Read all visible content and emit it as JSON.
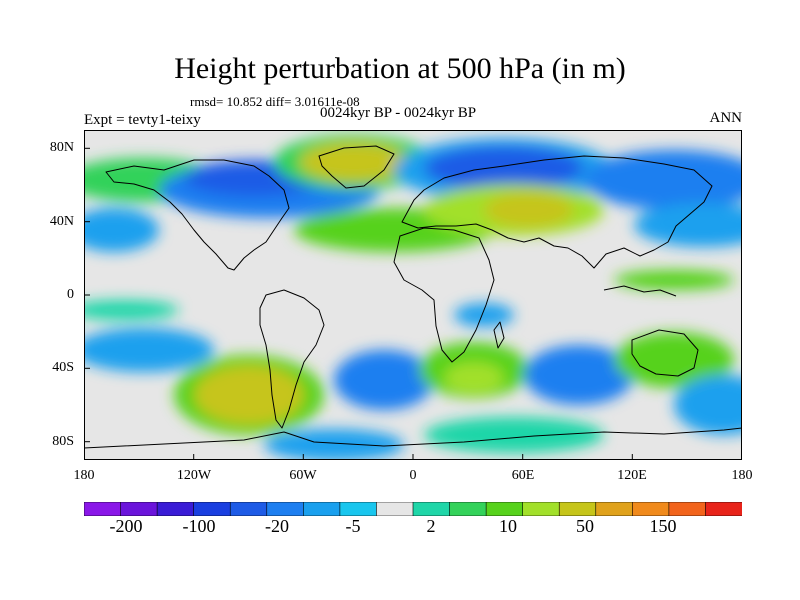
{
  "title": "Height perturbation at 500 hPa (in m)",
  "stats": "rmsd= 10.852 diff= 3.01611e-08",
  "experiment": "Expt = tevty1-teixy",
  "period": "0024kyr BP - 0024kyr BP",
  "season": "ANN",
  "lat_ticks": [
    "80N",
    "40N",
    "0",
    "40S",
    "80S"
  ],
  "lon_ticks": [
    "180",
    "120W",
    "60W",
    "0",
    "60E",
    "120E",
    "180"
  ],
  "colorbar_labels": [
    "-200",
    "-100",
    "-20",
    "-5",
    "2",
    "10",
    "50",
    "150"
  ],
  "colorbar_colors": [
    "#8a17e8",
    "#6b14db",
    "#3a1cd6",
    "#1a3fe0",
    "#1e5be6",
    "#1e7ff0",
    "#1aa0ee",
    "#19c6ee",
    "#e6e6e6",
    "#1fd6a8",
    "#33d25a",
    "#57d21c",
    "#a2e02a",
    "#c6c51a",
    "#e0a21c",
    "#f08a1c",
    "#f2641c",
    "#e8231a"
  ]
}
